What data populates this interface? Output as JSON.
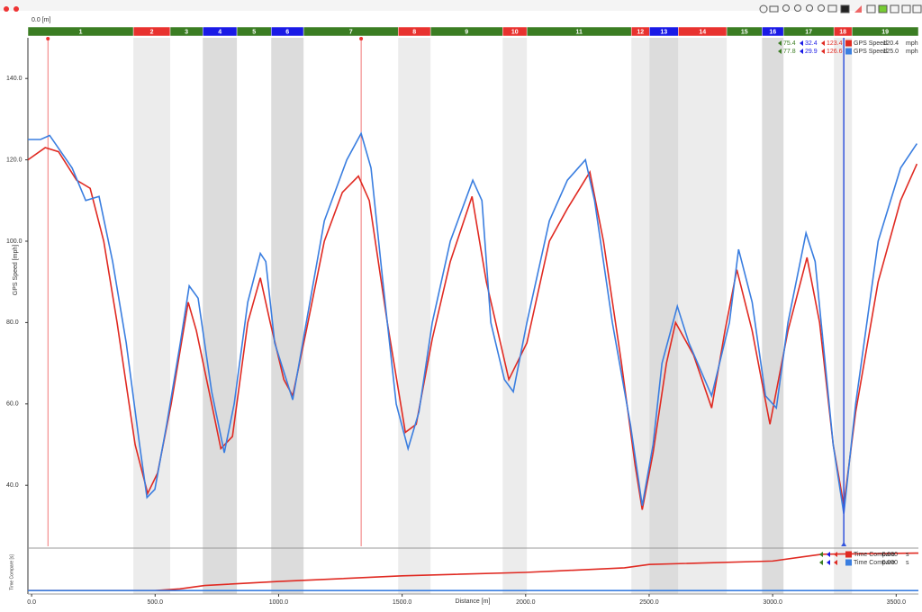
{
  "header": {
    "position": "0.0 [m]"
  },
  "chart_data": {
    "type": "line",
    "x_label": "Distance [m]",
    "y_label": "GPS Speed [mph]",
    "xlim": [
      -15,
      3590
    ],
    "ylim": [
      25,
      150
    ],
    "xticks": [
      {
        "value": 0,
        "label": "0.0"
      },
      {
        "value": 500,
        "label": "500.0"
      },
      {
        "value": 1000,
        "label": "1000.0"
      },
      {
        "value": 1500,
        "label": "1500.0"
      },
      {
        "value": 2000,
        "label": "2000.0"
      },
      {
        "value": 2500,
        "label": "2500.0"
      },
      {
        "value": 3000,
        "label": "3000.0"
      },
      {
        "value": 3500,
        "label": "3500.0"
      }
    ],
    "yticks": [
      {
        "value": 40,
        "label": "40.0"
      },
      {
        "value": 60,
        "label": "60.0"
      },
      {
        "value": 80,
        "label": "80.0"
      },
      {
        "value": 100,
        "label": "100.0"
      },
      {
        "value": 120,
        "label": "120.0"
      },
      {
        "value": 140,
        "label": "140.0"
      }
    ],
    "segments": {
      "names": [
        "1",
        "2",
        "3",
        "4",
        "5",
        "6",
        "7",
        "8",
        "9",
        "10",
        "11",
        "12",
        "13",
        "14",
        "15",
        "16",
        "17",
        "18",
        "19"
      ],
      "bounds": [
        -15,
        412,
        561,
        693,
        831,
        970,
        1101,
        1484,
        1615,
        1907,
        2005,
        2428,
        2501,
        2618,
        2814,
        2957,
        3044,
        3248,
        3321,
        3590
      ],
      "colors": [
        "#3b7d23",
        "#e8322f",
        "#3b7d23",
        "#1a1ae6",
        "#3b7d23",
        "#1a1ae6",
        "#3b7d23",
        "#e8322f",
        "#3b7d23",
        "#e8322f",
        "#3b7d23",
        "#e8322f",
        "#1a1ae6",
        "#e8322f",
        "#3b7d23",
        "#1a1ae6",
        "#3b7d23",
        "#e8322f",
        "#3b7d23"
      ]
    },
    "markers": [
      66,
      1334
    ],
    "cursor": 3288,
    "series": [
      {
        "name": "GPS Speed",
        "unit": "mph",
        "readout": "120.4",
        "stats": [
          75.4,
          32.4,
          123.4
        ],
        "color": "#e02a22",
        "x": [
          -15,
          55,
          109,
          182,
          237,
          292,
          346,
          419,
          470,
          510,
          565,
          634,
          667,
          729,
          766,
          813,
          875,
          926,
          966,
          1021,
          1057,
          1112,
          1185,
          1258,
          1323,
          1367,
          1440,
          1513,
          1557,
          1622,
          1695,
          1783,
          1841,
          1932,
          2005,
          2096,
          2169,
          2260,
          2315,
          2388,
          2443,
          2472,
          2516,
          2570,
          2607,
          2680,
          2753,
          2807,
          2855,
          2917,
          2989,
          3062,
          3139,
          3190,
          3245,
          3288,
          3336,
          3427,
          3518,
          3584
        ],
        "values": [
          120,
          123,
          122,
          115,
          113,
          100,
          80,
          50,
          38,
          43,
          60,
          85,
          78,
          60,
          49,
          52,
          80,
          91,
          80,
          66,
          62,
          78,
          100,
          112,
          116,
          110,
          80,
          53,
          55,
          76,
          95,
          111,
          90,
          66,
          75,
          100,
          108,
          117,
          100,
          70,
          45,
          34,
          48,
          70,
          80,
          72,
          59,
          78,
          93,
          78,
          55,
          78,
          96,
          80,
          50,
          35,
          58,
          90,
          110,
          119
        ]
      },
      {
        "name": "GPS Speed",
        "unit": "mph",
        "readout": "125.0",
        "stats": [
          77.8,
          29.9,
          126.6
        ],
        "color": "#3a7ee0",
        "x": [
          -15,
          36,
          73,
          164,
          219,
          273,
          328,
          383,
          437,
          467,
          499,
          547,
          602,
          638,
          674,
          729,
          780,
          820,
          875,
          926,
          948,
          984,
          1057,
          1112,
          1185,
          1276,
          1334,
          1374,
          1422,
          1476,
          1524,
          1568,
          1622,
          1695,
          1786,
          1823,
          1859,
          1914,
          1950,
          2005,
          2096,
          2169,
          2242,
          2279,
          2351,
          2424,
          2472,
          2516,
          2552,
          2614,
          2661,
          2753,
          2825,
          2862,
          2917,
          2971,
          3015,
          3062,
          3135,
          3172,
          3245,
          3288,
          3336,
          3427,
          3518,
          3584
        ],
        "values": [
          125,
          125,
          126,
          118,
          110,
          111,
          95,
          75,
          50,
          37,
          39,
          55,
          75,
          89,
          86,
          63,
          48,
          60,
          85,
          97,
          95,
          75,
          61,
          80,
          105,
          120,
          126.5,
          118,
          90,
          60,
          49,
          58,
          80,
          100,
          115,
          110,
          80,
          66,
          63,
          80,
          105,
          115,
          120,
          110,
          80,
          55,
          35,
          50,
          70,
          84,
          75,
          62,
          80,
          98,
          85,
          62,
          59,
          80,
          102,
          95,
          50,
          33,
          60,
          100,
          118,
          124
        ]
      }
    ]
  },
  "compare_chart": {
    "type": "line",
    "y_label": "Time Compare [s]",
    "ylim": [
      -0.3,
      3.5
    ],
    "series": [
      {
        "name": "Time Compare",
        "unit": "s",
        "readout": "0.000",
        "color": "#e02a22",
        "x": [
          -15,
          500,
          600,
          700,
          1000,
          1500,
          2000,
          2400,
          2500,
          3000,
          3200,
          3590
        ],
        "values": [
          0,
          0,
          0.15,
          0.45,
          0.8,
          1.3,
          1.6,
          2.0,
          2.3,
          2.6,
          3.2,
          3.3
        ]
      },
      {
        "name": "Time Compare",
        "unit": "s",
        "readout": "0.000",
        "color": "#3a7ee0",
        "x": [
          -15,
          3590
        ],
        "values": [
          0,
          0
        ]
      }
    ]
  }
}
